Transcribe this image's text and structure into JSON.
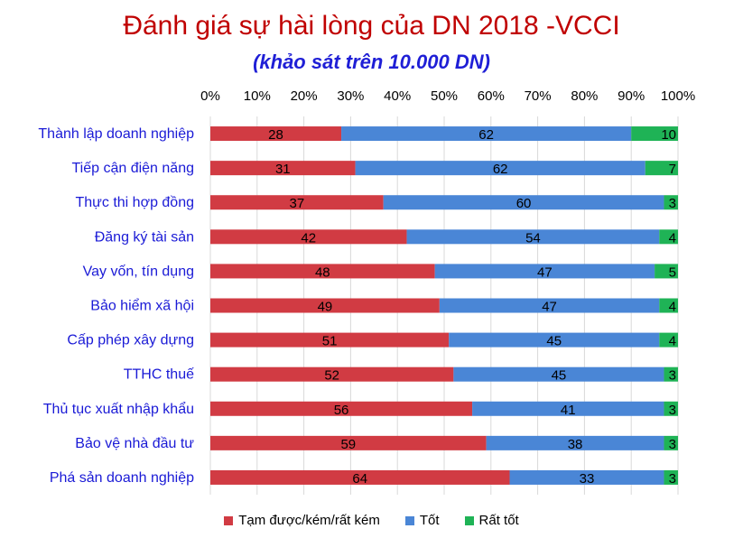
{
  "chart_data": {
    "type": "bar",
    "orientation": "horizontal",
    "stacked": true,
    "title": "Đánh giá sự hài lòng của DN 2018 -VCCI",
    "subtitle": "(khảo sát trên 10.000 DN)",
    "categories": [
      "Thành lập doanh nghiệp",
      "Tiếp cận điện năng",
      "Thực thi hợp đồng",
      "Đăng ký tài sản",
      "Vay vốn, tín dụng",
      "Bảo hiểm xã hội",
      "Cấp phép xây dựng",
      "TTHC thuế",
      "Thủ tục xuất nhập khẩu",
      "Bảo vệ nhà đầu tư",
      "Phá sản doanh nghiệp"
    ],
    "series": [
      {
        "name": "Tạm được/kém/rất kém",
        "color": "#d13b43",
        "values": [
          28,
          31,
          37,
          42,
          48,
          49,
          51,
          52,
          56,
          59,
          64
        ]
      },
      {
        "name": "Tốt",
        "color": "#4a86d6",
        "values": [
          62,
          62,
          60,
          54,
          47,
          47,
          45,
          45,
          41,
          38,
          33
        ]
      },
      {
        "name": "Rất tốt",
        "color": "#1fb356",
        "values": [
          10,
          7,
          3,
          4,
          5,
          4,
          4,
          3,
          3,
          3,
          3
        ]
      }
    ],
    "xlim": [
      0,
      100
    ],
    "x_ticks": [
      "0%",
      "10%",
      "20%",
      "30%",
      "40%",
      "50%",
      "60%",
      "70%",
      "80%",
      "90%",
      "100%"
    ],
    "axis_position": "top",
    "legend_position": "bottom",
    "grid": true
  },
  "colors": {
    "title": "#c00000",
    "subtitle": "#1f1fd6",
    "category_label": "#1a1ad6",
    "gridline": "#d9d9d9"
  }
}
